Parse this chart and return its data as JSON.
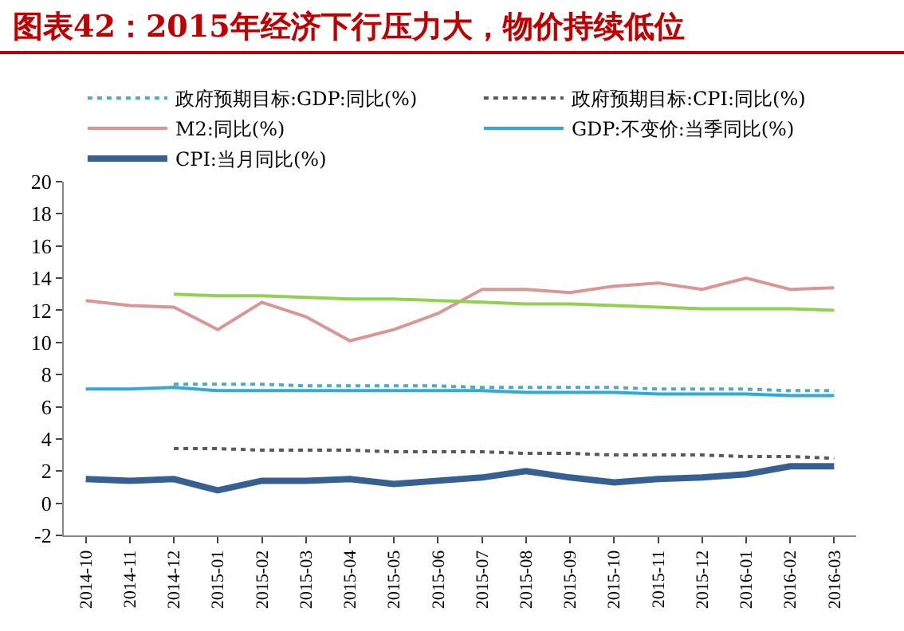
{
  "chart_data": {
    "type": "line",
    "title": "图表42：2015年经济下行压力大，物价持续低位",
    "categories": [
      "2014-10",
      "2014-11",
      "2014-12",
      "2015-01",
      "2015-02",
      "2015-03",
      "2015-04",
      "2015-05",
      "2015-06",
      "2015-07",
      "2015-08",
      "2015-09",
      "2015-10",
      "2015-11",
      "2015-12",
      "2016-01",
      "2016-02",
      "2016-03"
    ],
    "series": [
      {
        "name": "政府预期目标:GDP:同比(%)",
        "color": "#4bacc6",
        "line_style": "dotted",
        "values": [
          null,
          null,
          7.4,
          7.4,
          7.4,
          7.3,
          7.3,
          7.3,
          7.3,
          7.2,
          7.2,
          7.2,
          7.2,
          7.1,
          7.1,
          7.1,
          7.0,
          7.0
        ]
      },
      {
        "name": "政府预期目标:CPI:同比(%)",
        "color": "#595959",
        "line_style": "dotted",
        "values": [
          null,
          null,
          3.4,
          3.4,
          3.3,
          3.3,
          3.3,
          3.2,
          3.2,
          3.2,
          3.1,
          3.1,
          3.0,
          3.0,
          3.0,
          2.9,
          2.9,
          2.8
        ]
      },
      {
        "name": "M2:同比(%)",
        "color": "#d99694",
        "line_style": "solid",
        "values": [
          12.6,
          12.3,
          12.2,
          10.8,
          12.5,
          11.6,
          10.1,
          10.8,
          11.8,
          13.3,
          13.3,
          13.1,
          13.5,
          13.7,
          13.3,
          14.0,
          13.3,
          13.4
        ]
      },
      {
        "name": "GDP:不变价:当季同比(%)",
        "color": "#31a9d9",
        "line_style": "solid",
        "values": [
          7.1,
          7.1,
          7.2,
          7.0,
          7.0,
          7.0,
          7.0,
          7.0,
          7.0,
          7.0,
          6.9,
          6.9,
          6.9,
          6.8,
          6.8,
          6.8,
          6.7,
          6.7
        ]
      },
      {
        "name": "CPI:当月同比(%)",
        "color": "#376092",
        "line_style": "solid",
        "values": [
          1.5,
          1.4,
          1.5,
          0.8,
          1.4,
          1.4,
          1.5,
          1.2,
          1.4,
          1.6,
          2.0,
          1.6,
          1.3,
          1.5,
          1.6,
          1.8,
          2.3,
          2.3
        ]
      },
      {
        "color": "#92d050",
        "line_style": "solid",
        "values": [
          null,
          null,
          13.0,
          12.9,
          12.9,
          12.8,
          12.7,
          12.7,
          12.6,
          12.5,
          12.4,
          12.4,
          12.3,
          12.2,
          12.1,
          12.1,
          12.1,
          12.0
        ]
      }
    ],
    "ylim": [
      -2,
      20
    ],
    "yticks": [
      -2,
      0,
      2,
      4,
      6,
      8,
      10,
      12,
      14,
      16,
      18,
      20
    ],
    "grid": false,
    "legend": "top",
    "marker": "none"
  }
}
